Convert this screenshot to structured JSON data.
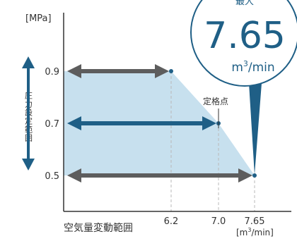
{
  "chart_data": {
    "type": "area",
    "y_unit_label": "[MPa]",
    "x_unit_label_base": "[m",
    "x_unit_label_sup": "3",
    "x_unit_label_end": "/min]",
    "xlabel": "空気量変動範囲",
    "ylabel": "圧力設定範囲",
    "y_ticks": [
      0.9,
      0.7,
      0.5
    ],
    "x_ticks": [
      6.2,
      7.0,
      7.65
    ],
    "y_tick_labels": [
      "0.9",
      "0.7",
      "0.5"
    ],
    "x_tick_labels": [
      "6.2",
      "7.0",
      "7.65"
    ],
    "boundary": [
      {
        "x": 6.2,
        "y": 0.9
      },
      {
        "x": 7.0,
        "y": 0.7
      },
      {
        "x": 7.65,
        "y": 0.5
      }
    ],
    "arrows": [
      {
        "y": 0.9,
        "x_end": 6.2,
        "style": "gray"
      },
      {
        "y": 0.7,
        "x_end": 7.0,
        "style": "blue"
      },
      {
        "y": 0.5,
        "x_end": 7.65,
        "style": "gray"
      }
    ],
    "rated_point": {
      "x": 7.0,
      "y": 0.7,
      "label": "定格点"
    },
    "callout": {
      "top_text": "最大",
      "value": "7.65",
      "unit_base": "m",
      "unit_sup": "3",
      "unit_end": "/min"
    },
    "colors": {
      "area_fill": "#c7e0ee",
      "blue": "#1f5f86",
      "gray": "#5d5d5d",
      "axis": "#333333",
      "grid_dash": "#b8b8b8"
    }
  }
}
